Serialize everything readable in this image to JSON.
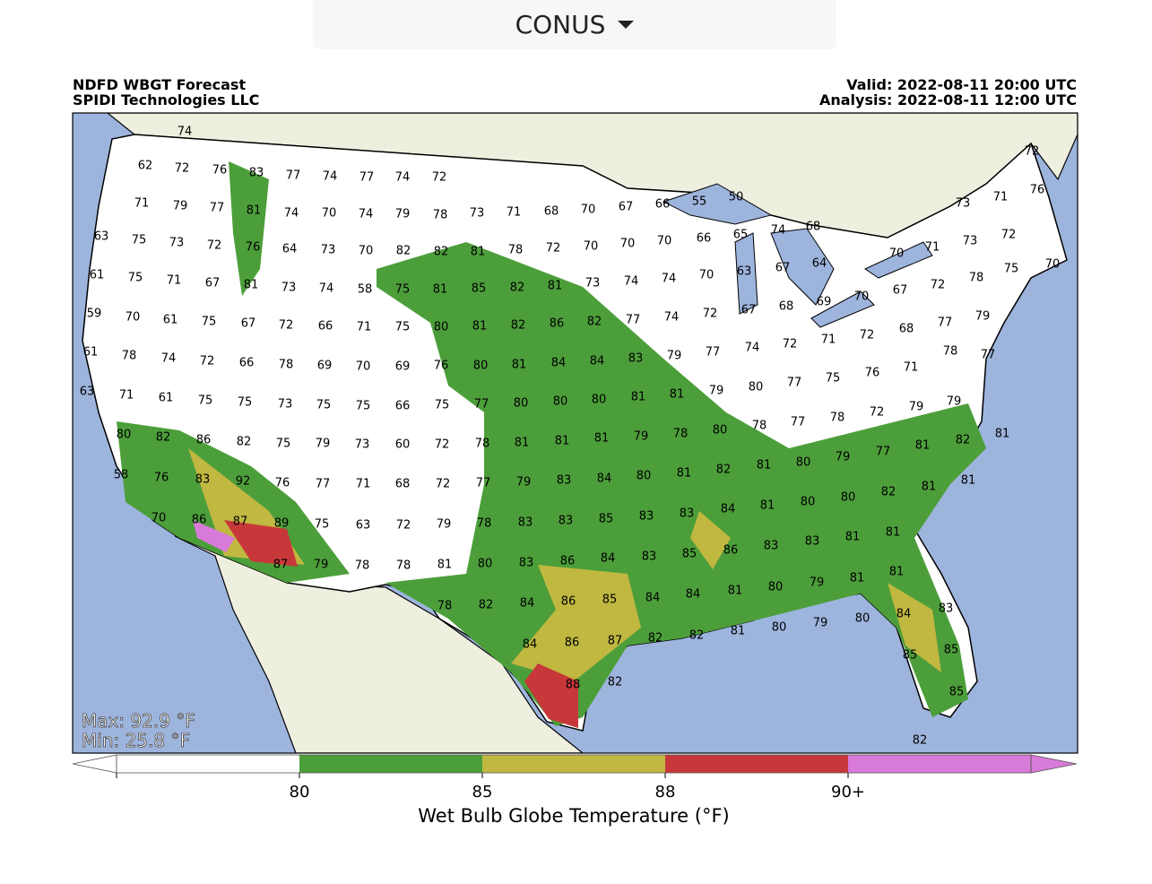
{
  "dropdown": {
    "label": "CONUS"
  },
  "header": {
    "title": "NDFD WBGT Forecast",
    "subtitle": "SPIDI Technologies LLC",
    "valid": "Valid: 2022-08-11 20:00 UTC",
    "analysis": "Analysis: 2022-08-11 12:00 UTC"
  },
  "stats": {
    "max": "Max: 92.9 °F",
    "min": "Min: 25.8 °F"
  },
  "colorbar": {
    "label": "Wet Bulb Globe Temperature (°F)",
    "colors": [
      "#ffffff",
      "#4c9e3a",
      "#c0b840",
      "#c8383a",
      "#d87ad8"
    ],
    "ticks": [
      80,
      85,
      88,
      {
        "value": 90,
        "label": "90+"
      }
    ]
  },
  "station_values": [
    74,
    62,
    72,
    76,
    83,
    77,
    74,
    77,
    74,
    72,
    71,
    79,
    77,
    81,
    74,
    70,
    74,
    79,
    78,
    73,
    71,
    68,
    70,
    67,
    66,
    55,
    50,
    63,
    75,
    73,
    72,
    76,
    64,
    73,
    70,
    82,
    82,
    81,
    78,
    72,
    70,
    70,
    70,
    66,
    65,
    74,
    68,
    61,
    75,
    71,
    67,
    81,
    73,
    74,
    58,
    75,
    81,
    85,
    82,
    81,
    73,
    74,
    74,
    70,
    63,
    67,
    64,
    59,
    70,
    61,
    75,
    67,
    72,
    66,
    71,
    75,
    80,
    81,
    82,
    86,
    82,
    77,
    74,
    72,
    67,
    68,
    69,
    70,
    67,
    72,
    70,
    71,
    73,
    73,
    71,
    76,
    72,
    72,
    70,
    75,
    78,
    79,
    61,
    78,
    74,
    72,
    66,
    78,
    69,
    70,
    69,
    76,
    80,
    81,
    84,
    84,
    83,
    79,
    77,
    74,
    72,
    71,
    72,
    68,
    77,
    78,
    77,
    71,
    76,
    75,
    63,
    71,
    61,
    75,
    75,
    73,
    75,
    75,
    66,
    75,
    77,
    80,
    80,
    80,
    81,
    81,
    79,
    80,
    77,
    72,
    79,
    79,
    80,
    82,
    86,
    82,
    75,
    79,
    73,
    60,
    72,
    78,
    81,
    81,
    81,
    79,
    78,
    80,
    78,
    77,
    78,
    81,
    82,
    81,
    77,
    79,
    80,
    58,
    76,
    83,
    92,
    76,
    77,
    71,
    68,
    72,
    77,
    79,
    83,
    84,
    80,
    81,
    82,
    81,
    80,
    82,
    81,
    81,
    80,
    81,
    84,
    83,
    83,
    70,
    86,
    87,
    89,
    75,
    63,
    72,
    79,
    78,
    83,
    83,
    85,
    87,
    79,
    78,
    78,
    81,
    80,
    83,
    86,
    84,
    83,
    85,
    86,
    83,
    83,
    81,
    81,
    81,
    81,
    79,
    80,
    81,
    84,
    84,
    78,
    82,
    84,
    86,
    85,
    84,
    83,
    80,
    79,
    80,
    81,
    82,
    82,
    87,
    86,
    84,
    85,
    85,
    82,
    88,
    85,
    82
  ]
}
